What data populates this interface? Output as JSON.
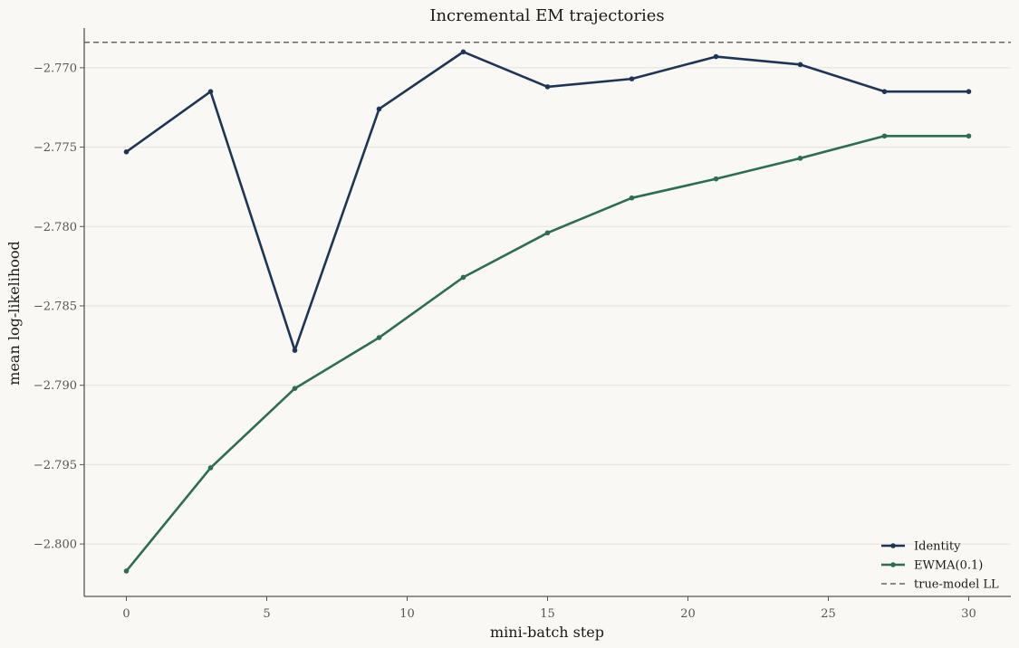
{
  "chart_data": {
    "type": "line",
    "title": "Incremental EM trajectories",
    "xlabel": "mini-batch step",
    "ylabel": "mean log-likelihood",
    "xlim": [
      -1.5,
      31.5
    ],
    "ylim": [
      -2.8033,
      -2.7675
    ],
    "xticks": [
      0,
      5,
      10,
      15,
      20,
      25,
      30
    ],
    "xtick_labels": [
      "0",
      "5",
      "10",
      "15",
      "20",
      "25",
      "30"
    ],
    "yticks": [
      -2.77,
      -2.775,
      -2.78,
      -2.785,
      -2.79,
      -2.795,
      -2.8
    ],
    "ytick_labels": [
      "−2.770",
      "−2.775",
      "−2.780",
      "−2.785",
      "−2.790",
      "−2.795",
      "−2.800"
    ],
    "grid": "horizontal",
    "legend_position": "bottom-right",
    "series": [
      {
        "name": "Identity",
        "color": "#1f3557",
        "x": [
          0,
          3,
          6,
          9,
          12,
          15,
          18,
          21,
          24,
          27,
          30
        ],
        "y": [
          -2.7753,
          -2.7715,
          -2.7878,
          -2.7726,
          -2.769,
          -2.7712,
          -2.7707,
          -2.7693,
          -2.7698,
          -2.7715,
          -2.7715
        ]
      },
      {
        "name": "EWMA(0.1)",
        "color": "#2b6e52",
        "x": [
          0,
          3,
          6,
          9,
          12,
          15,
          18,
          21,
          24,
          27,
          30
        ],
        "y": [
          -2.8017,
          -2.7952,
          -2.7902,
          -2.787,
          -2.7832,
          -2.7804,
          -2.7782,
          -2.777,
          -2.7757,
          -2.7743,
          -2.7743
        ]
      }
    ],
    "reference_line": {
      "name": "true-model LL",
      "y": -2.7684,
      "color": "#666666",
      "style": "dashed"
    }
  }
}
